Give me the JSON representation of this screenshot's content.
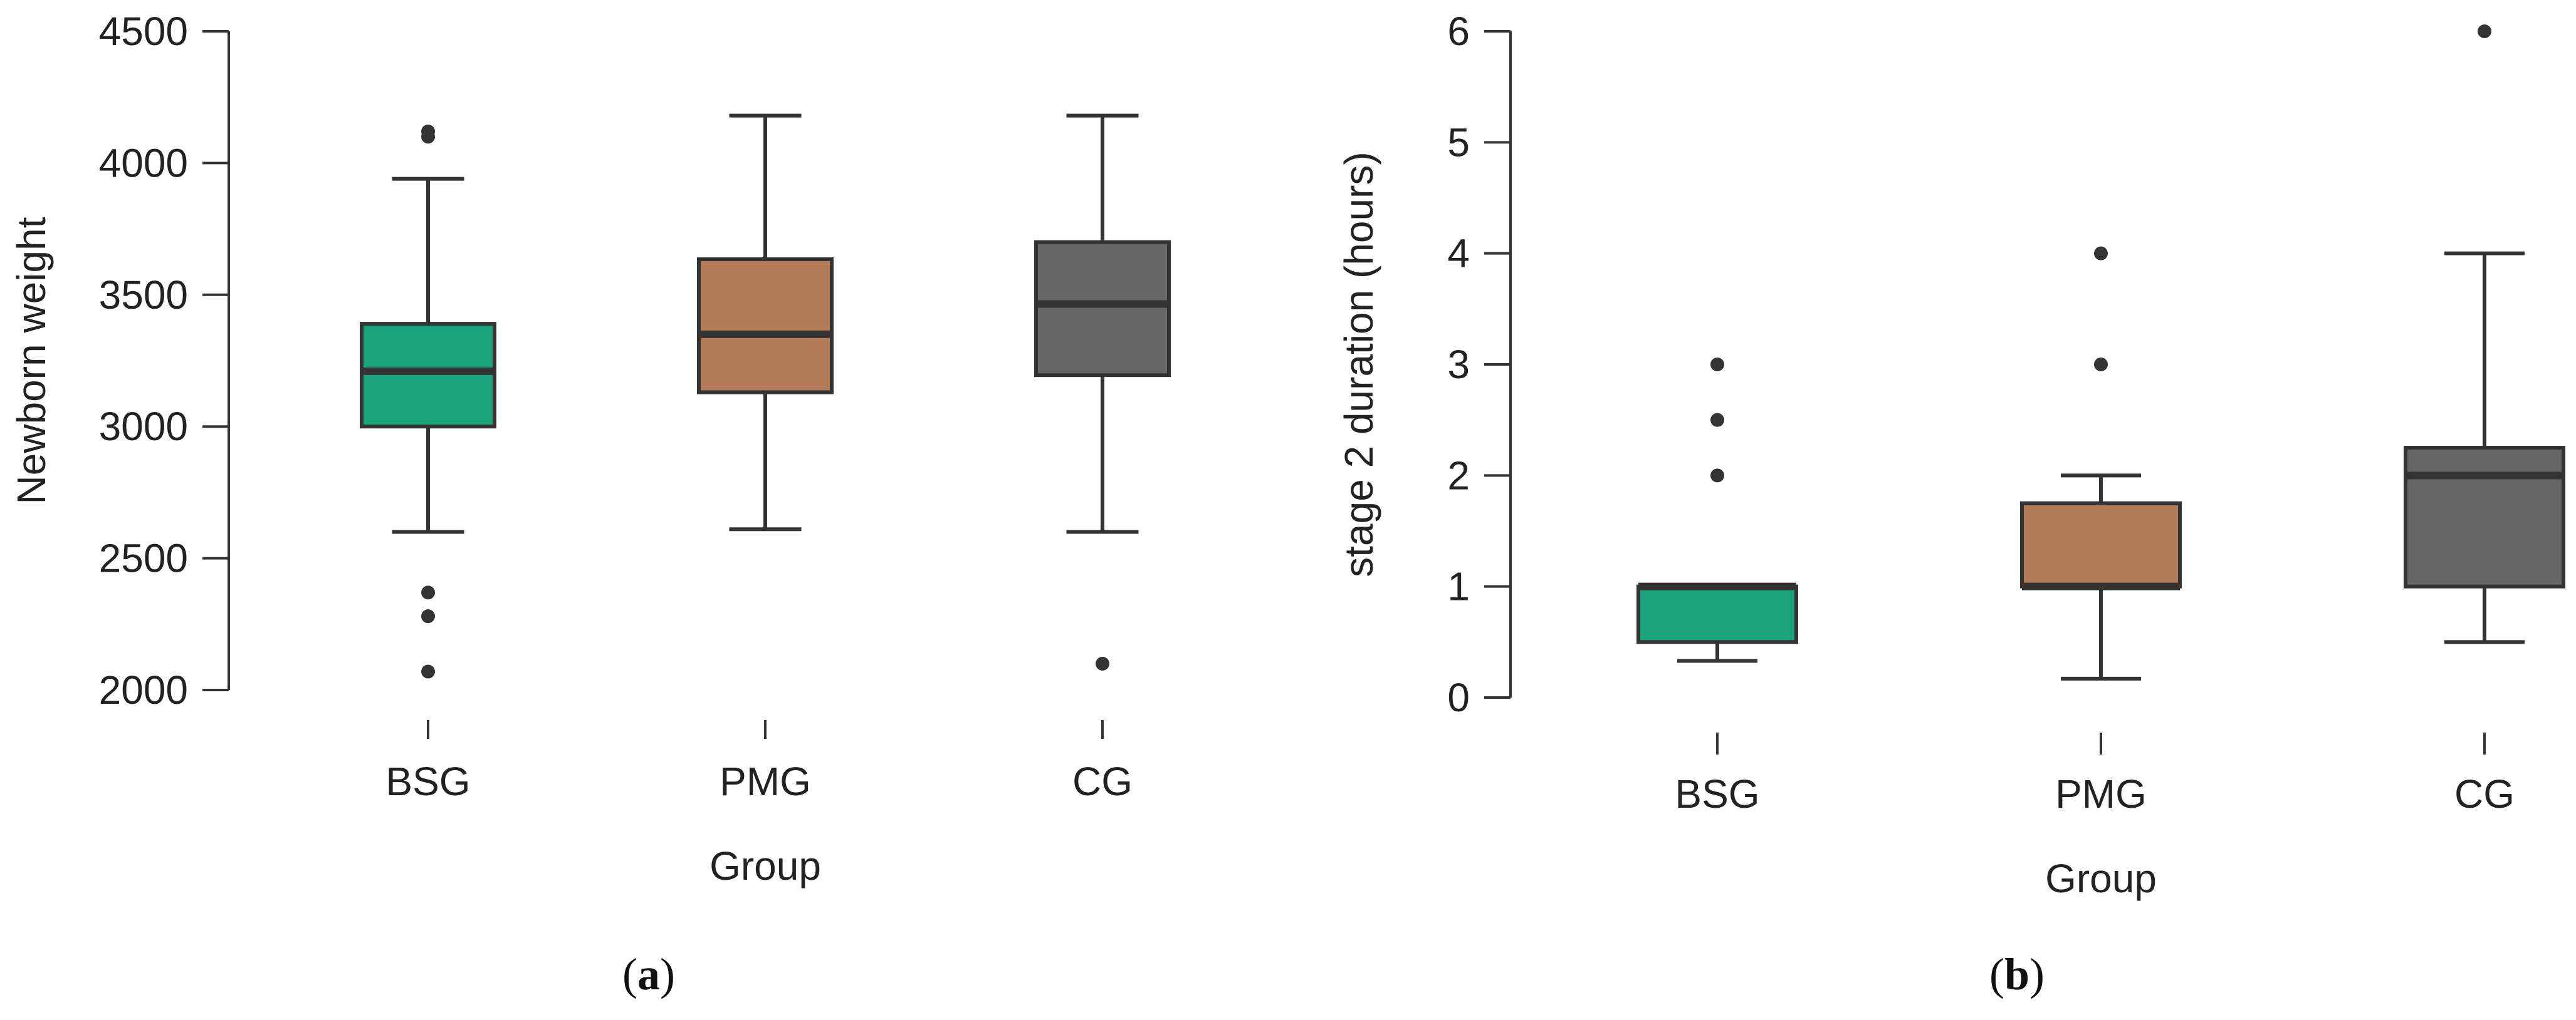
{
  "chart_data": [
    {
      "type": "box",
      "panel": "(a)",
      "panel_letter": "a",
      "title": "",
      "xlabel": "Group",
      "ylabel": "Newborn weight",
      "ylim": [
        2000,
        4500
      ],
      "yticks": [
        2000,
        2500,
        3000,
        3500,
        4000,
        4500
      ],
      "categories": [
        "BSG",
        "PMG",
        "CG"
      ],
      "colors": [
        "#1aa278",
        "#b47b58",
        "#666666"
      ],
      "boxes": [
        {
          "group": "BSG",
          "whisker_low": 2600,
          "q1": 3000,
          "median": 3210,
          "q3": 3390,
          "whisker_high": 3940,
          "outliers": [
            2070,
            2280,
            2370,
            4100,
            4120
          ]
        },
        {
          "group": "PMG",
          "whisker_low": 2610,
          "q1": 3130,
          "median": 3350,
          "q3": 3635,
          "whisker_high": 4180,
          "outliers": []
        },
        {
          "group": "CG",
          "whisker_low": 2600,
          "q1": 3195,
          "median": 3465,
          "q3": 3700,
          "whisker_high": 4180,
          "outliers": [
            2100
          ]
        }
      ]
    },
    {
      "type": "box",
      "panel": "(b)",
      "panel_letter": "b",
      "title": "",
      "xlabel": "Group",
      "ylabel": "stage 2 duration (hours)",
      "ylim": [
        0,
        6
      ],
      "yticks": [
        0,
        1,
        2,
        3,
        4,
        5,
        6
      ],
      "categories": [
        "BSG",
        "PMG",
        "CG"
      ],
      "colors": [
        "#1aa278",
        "#b47b58",
        "#666666"
      ],
      "boxes": [
        {
          "group": "BSG",
          "whisker_low": 0.33,
          "q1": 0.5,
          "median": 1.0,
          "q3": 1.0,
          "whisker_high": 1.0,
          "outliers": [
            2.0,
            2.5,
            3.0
          ]
        },
        {
          "group": "PMG",
          "whisker_low": 0.17,
          "q1": 1.0,
          "median": 1.0,
          "q3": 1.75,
          "whisker_high": 2.0,
          "outliers": [
            3.0,
            4.0
          ]
        },
        {
          "group": "CG",
          "whisker_low": 0.5,
          "q1": 1.0,
          "median": 2.0,
          "q3": 2.25,
          "whisker_high": 4.0,
          "outliers": [
            6.0
          ]
        }
      ]
    }
  ]
}
